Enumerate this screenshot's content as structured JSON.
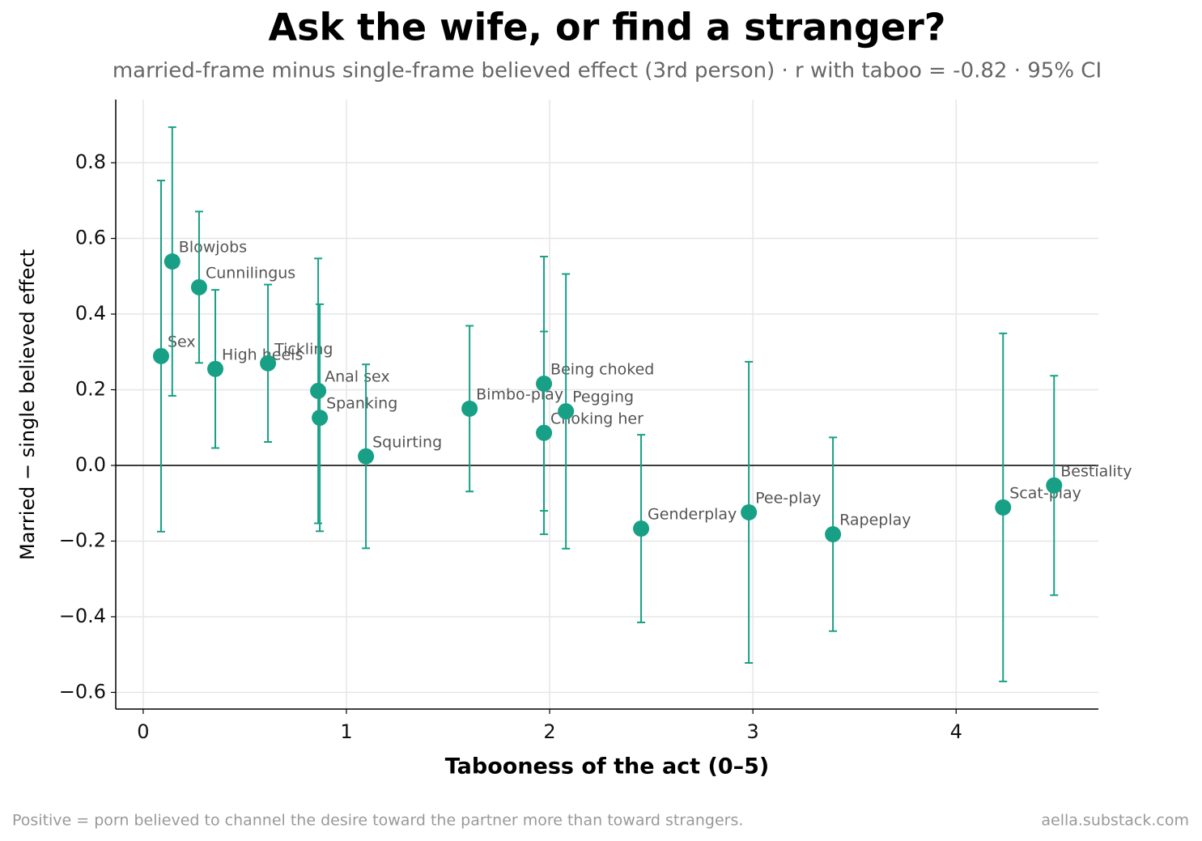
{
  "chart_data": {
    "type": "scatter",
    "title": "Ask the wife, or find a stranger?",
    "subtitle": "married-frame minus single-frame believed effect (3rd person) · r with taboo = -0.82 · 95% CI",
    "x_label": "Tabooness of the act (0–5)",
    "y_label": "Married − single believed effect",
    "note": "Positive = porn believed to channel the desire toward the partner more than toward strangers.",
    "source": "aella.substack.com",
    "color": "#17a085",
    "grid": true,
    "hline": 0,
    "labels": [
      "Sex",
      "Blowjobs",
      "Cunnilingus",
      "High heels",
      "Tickling",
      "Anal sex",
      "Spanking",
      "Squirting",
      "Bimbo-play",
      "Being choked",
      "Choking her",
      "Pegging",
      "Genderplay",
      "Pee-play",
      "Rapeplay",
      "Scat-play",
      "Bestiality"
    ],
    "x": [
      0.088,
      0.143,
      0.275,
      0.355,
      0.614,
      0.861,
      0.869,
      1.096,
      1.606,
      1.972,
      1.972,
      2.08,
      2.45,
      2.98,
      3.394,
      4.231,
      4.482
    ],
    "values": [
      0.289,
      0.539,
      0.471,
      0.255,
      0.27,
      0.197,
      0.126,
      0.024,
      0.15,
      0.216,
      0.086,
      0.143,
      -0.167,
      -0.124,
      -0.182,
      -0.111,
      -0.053
    ],
    "errors": [
      0.464,
      0.355,
      0.2,
      0.209,
      0.208,
      0.35,
      0.3,
      0.243,
      0.219,
      0.336,
      0.268,
      0.363,
      0.248,
      0.398,
      0.256,
      0.46,
      0.29
    ],
    "xlim": [
      -0.135,
      4.7
    ],
    "ylim": [
      -0.644,
      0.967
    ],
    "xticks": [
      0,
      1,
      2,
      3,
      4
    ],
    "yticks": [
      {
        "value": -0.6,
        "label": "−0.6"
      },
      {
        "value": -0.4,
        "label": "−0.4"
      },
      {
        "value": -0.2,
        "label": "−0.2"
      },
      {
        "value": 0,
        "label": "0.0"
      },
      0.2,
      0.4,
      0.6,
      0.8
    ]
  }
}
